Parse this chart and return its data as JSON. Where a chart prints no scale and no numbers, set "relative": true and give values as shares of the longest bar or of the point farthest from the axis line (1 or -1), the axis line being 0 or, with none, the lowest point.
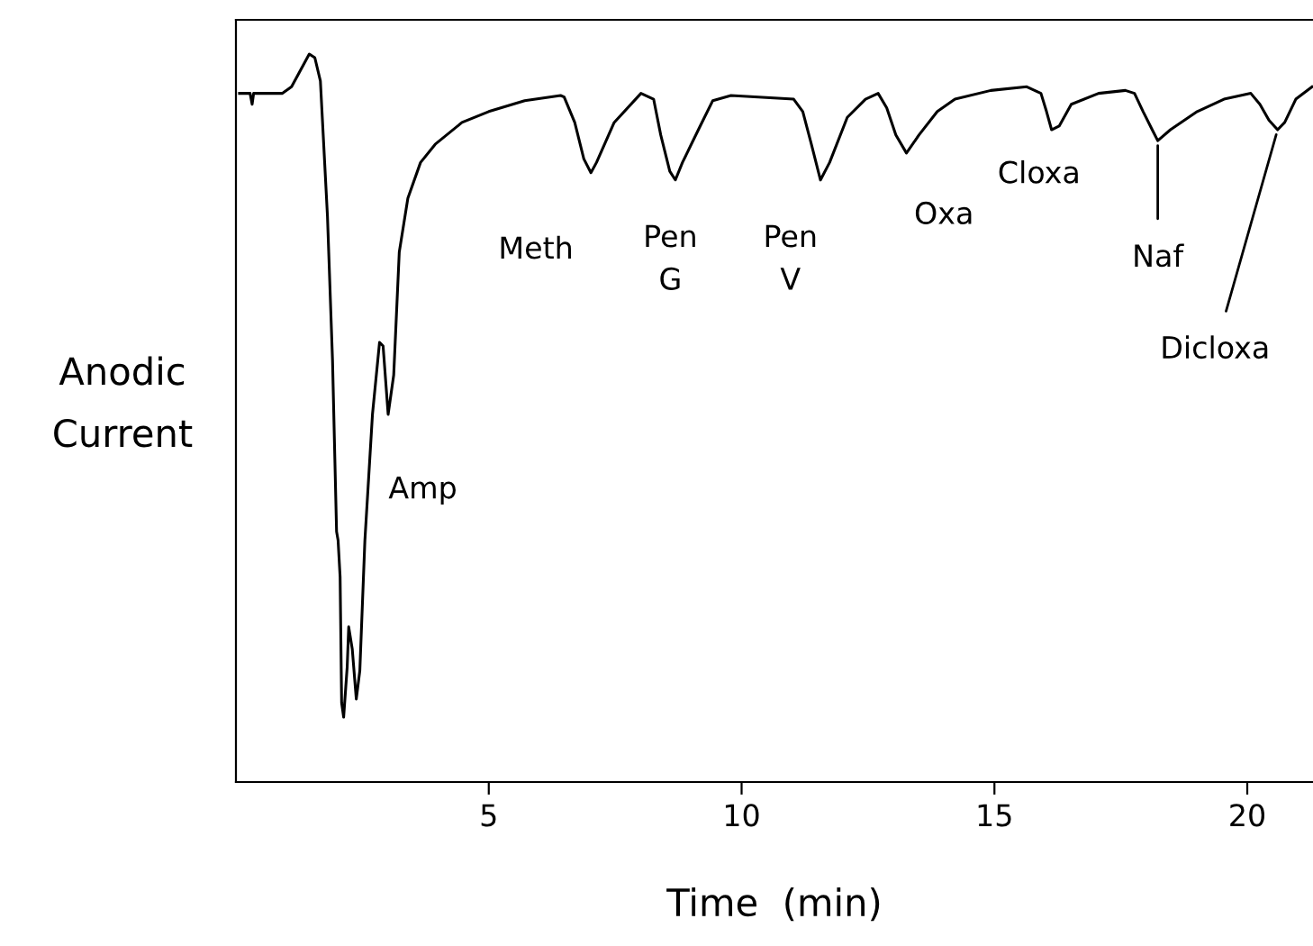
{
  "chart_data": {
    "type": "line",
    "relative": true,
    "xlabel": "Time  (min)",
    "ylabel": "Anodic\nCurrent",
    "xlim": [
      0,
      21.3
    ],
    "xticks": [
      5,
      10,
      15,
      20
    ],
    "grid": false,
    "legend": false,
    "marker": "none",
    "line_style": "solid",
    "series": [
      {
        "color": "#000000",
        "x": [
          0.07,
          0.28,
          0.32,
          0.35,
          0.92,
          1.1,
          1.45,
          1.56,
          1.67,
          1.81,
          1.91,
          1.99,
          2.02,
          2.06,
          2.09,
          2.13,
          2.2,
          2.23,
          2.3,
          2.38,
          2.45,
          2.55,
          2.7,
          2.84,
          2.91,
          3.01,
          3.12,
          3.23,
          3.4,
          3.65,
          3.94,
          4.47,
          5.0,
          5.71,
          6.42,
          6.49,
          6.7,
          6.88,
          7.02,
          7.13,
          7.48,
          8.01,
          8.26,
          8.4,
          8.58,
          8.69,
          8.83,
          9.18,
          9.43,
          9.79,
          11.03,
          11.21,
          11.38,
          11.56,
          11.74,
          12.09,
          12.45,
          12.7,
          12.87,
          13.05,
          13.26,
          13.51,
          13.87,
          14.22,
          14.93,
          15.64,
          15.92,
          16.03,
          16.13,
          16.28,
          16.52,
          17.06,
          17.59,
          17.77,
          17.94,
          18.12,
          18.23,
          18.48,
          19.01,
          19.54,
          20.07,
          20.25,
          20.43,
          20.6,
          20.74,
          20.96,
          21.28
        ],
        "values": [
          0.946,
          0.946,
          0.931,
          0.946,
          0.946,
          0.955,
          1.0,
          0.995,
          0.963,
          0.777,
          0.579,
          0.344,
          0.332,
          0.282,
          0.109,
          0.089,
          0.158,
          0.213,
          0.183,
          0.114,
          0.153,
          0.332,
          0.505,
          0.604,
          0.599,
          0.505,
          0.559,
          0.728,
          0.802,
          0.851,
          0.876,
          0.906,
          0.921,
          0.936,
          0.943,
          0.941,
          0.906,
          0.856,
          0.837,
          0.851,
          0.906,
          0.946,
          0.938,
          0.889,
          0.839,
          0.827,
          0.851,
          0.901,
          0.936,
          0.943,
          0.938,
          0.921,
          0.876,
          0.827,
          0.851,
          0.913,
          0.938,
          0.946,
          0.926,
          0.889,
          0.864,
          0.889,
          0.921,
          0.938,
          0.95,
          0.955,
          0.946,
          0.921,
          0.896,
          0.901,
          0.931,
          0.946,
          0.95,
          0.946,
          0.921,
          0.896,
          0.881,
          0.896,
          0.921,
          0.938,
          0.946,
          0.931,
          0.909,
          0.896,
          0.906,
          0.938,
          0.955
        ]
      }
    ],
    "annotations": [
      {
        "text": "Amp",
        "x": 2.62,
        "y": 0.401
      },
      {
        "text": "Meth",
        "x": 7.02,
        "y": 0.837
      },
      {
        "text": "Pen\nG",
        "x": 8.69,
        "y": 0.827
      },
      {
        "text": "Pen\nV",
        "x": 11.56,
        "y": 0.827
      },
      {
        "text": "Oxa",
        "x": 13.26,
        "y": 0.864
      },
      {
        "text": "Cloxa",
        "x": 16.13,
        "y": 0.896
      },
      {
        "text": "Naf",
        "x": 18.23,
        "y": 0.881
      },
      {
        "text": "Dicloxa",
        "x": 20.6,
        "y": 0.896
      }
    ]
  }
}
